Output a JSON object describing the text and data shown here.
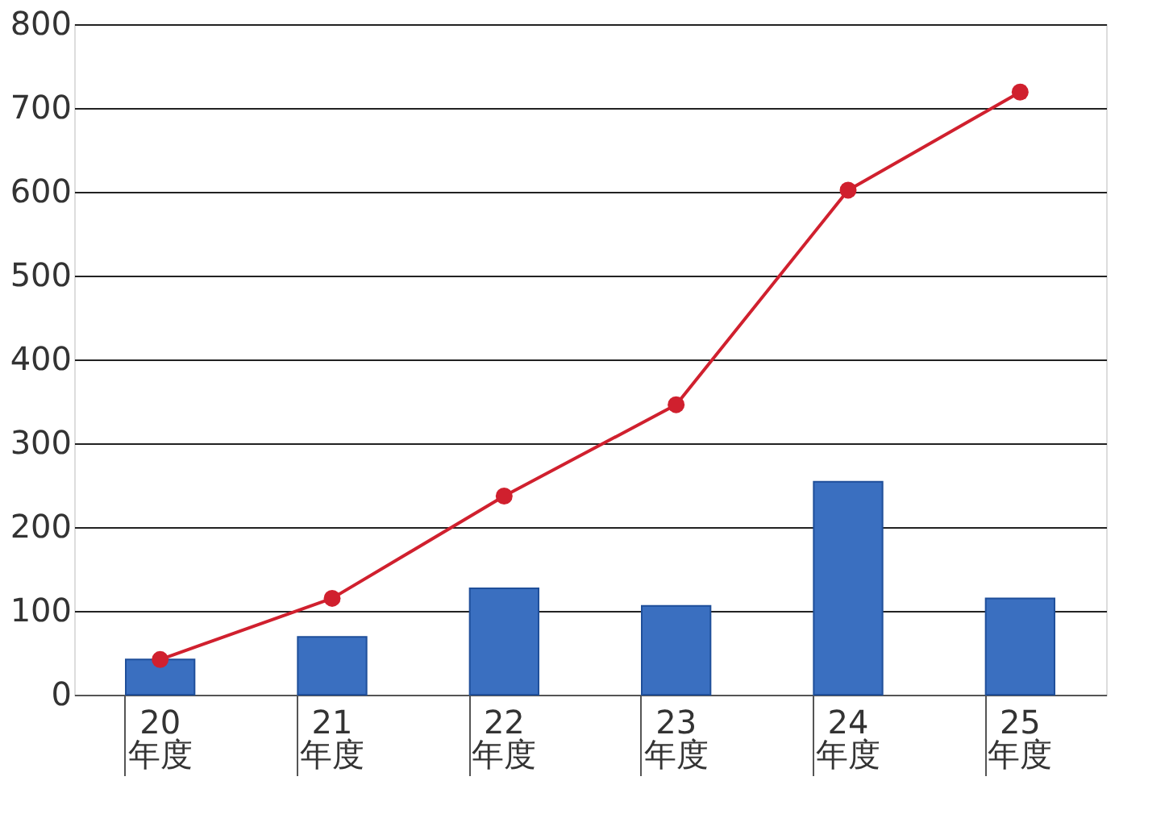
{
  "chart_data": {
    "type": "bar",
    "categories": [
      "20\n年度",
      "21\n年度",
      "22\n年度",
      "23\n年度",
      "24\n年度",
      "25\n年度"
    ],
    "series": [
      {
        "color": "#3a6fc0",
        "values": [
          42,
          69,
          127,
          106,
          254,
          115
        ]
      },
      {
        "type": "line",
        "color": "#d0202e",
        "values": [
          42,
          115,
          237,
          346,
          602,
          719
        ],
        "marker": "circle"
      }
    ],
    "ylim": [
      0,
      800
    ],
    "yticks": [
      0,
      100,
      200,
      300,
      400,
      500,
      600,
      700,
      800
    ],
    "grid": "y"
  }
}
